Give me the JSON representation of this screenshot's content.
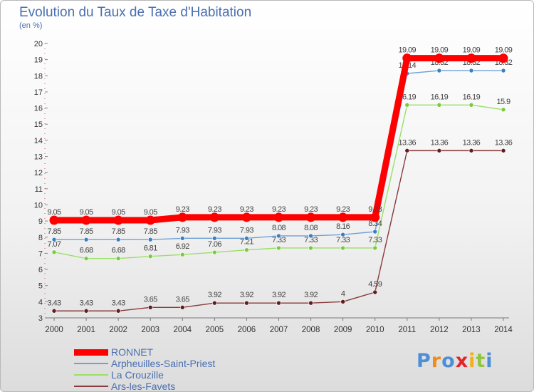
{
  "title": "Evolution du Taux de Taxe d'Habitation",
  "subtitle": "(en %)",
  "logo": {
    "text": "Proxiti",
    "letters": [
      "P",
      "r",
      "o",
      "x",
      "i",
      "t",
      "i"
    ],
    "colors": [
      "#4c8fd6",
      "#f28a1e",
      "#4c8fd6",
      "#e3232a",
      "#f2b01e",
      "#8ec63f",
      "#4c8fd6"
    ]
  },
  "chart_data": {
    "type": "line",
    "title": "Evolution du Taux de Taxe d'Habitation",
    "subtitle": "(en %)",
    "xlabel": "",
    "ylabel": "",
    "x": [
      2000,
      2001,
      2002,
      2003,
      2004,
      2005,
      2006,
      2007,
      2008,
      2009,
      2010,
      2011,
      2012,
      2013,
      2014
    ],
    "ylim": [
      3,
      20
    ],
    "yticks": [
      3,
      4,
      5,
      6,
      7,
      8,
      9,
      10,
      11,
      12,
      13,
      14,
      15,
      16,
      17,
      18,
      19,
      20
    ],
    "grid": false,
    "legend_position": "bottom-left",
    "series": [
      {
        "name": "RONNET",
        "color": "#ff0000",
        "emphasized": true,
        "values": [
          9.05,
          9.05,
          9.05,
          9.05,
          9.23,
          9.23,
          9.23,
          9.23,
          9.23,
          9.23,
          9.23,
          19.09,
          19.09,
          19.09,
          19.09
        ],
        "labels": [
          "9.05",
          "9.05",
          "9.05",
          "9.05",
          "9.23",
          "9.23",
          "9.23",
          "9.23",
          "9.23",
          "9.23",
          "9.23",
          "19.09",
          "19.09",
          "19.09",
          "19.09"
        ]
      },
      {
        "name": "Arpheuilles-Saint-Priest",
        "color": "#6fa0d8",
        "marker": "#3a7fc4",
        "values": [
          7.85,
          7.85,
          7.85,
          7.85,
          7.93,
          7.93,
          7.93,
          8.08,
          8.08,
          8.16,
          8.34,
          18.14,
          18.32,
          18.32,
          18.32
        ],
        "labels": [
          "7.85",
          "7.85",
          "7.85",
          "7.85",
          "7.93",
          "7.93",
          "7.93",
          "8.08",
          "8.08",
          "8.16",
          "8.34",
          "18.14",
          "18.32",
          "18.32",
          "18.32"
        ]
      },
      {
        "name": "La Crouzille",
        "color": "#99e066",
        "marker": "#7cc940",
        "values": [
          7.07,
          6.68,
          6.68,
          6.81,
          6.92,
          7.06,
          7.21,
          7.33,
          7.33,
          7.33,
          7.33,
          16.19,
          16.19,
          16.19,
          15.9
        ],
        "labels": [
          "7.07",
          "6.68",
          "6.68",
          "6.81",
          "6.92",
          "7.06",
          "7.21",
          "7.33",
          "7.33",
          "7.33",
          "7.33",
          "16.19",
          "16.19",
          "16.19",
          "15.9"
        ]
      },
      {
        "name": "Ars-les-Favets",
        "color": "#8a3a3a",
        "marker": "#5c1e1e",
        "values": [
          3.43,
          3.43,
          3.43,
          3.65,
          3.65,
          3.92,
          3.92,
          3.92,
          3.92,
          4,
          4.59,
          13.36,
          13.36,
          13.36,
          13.36
        ],
        "labels": [
          "3.43",
          "3.43",
          "3.43",
          "3.65",
          "3.65",
          "3.92",
          "3.92",
          "3.92",
          "3.92",
          "4",
          "4.59",
          "13.36",
          "13.36",
          "13.36",
          "13.36"
        ]
      }
    ]
  }
}
